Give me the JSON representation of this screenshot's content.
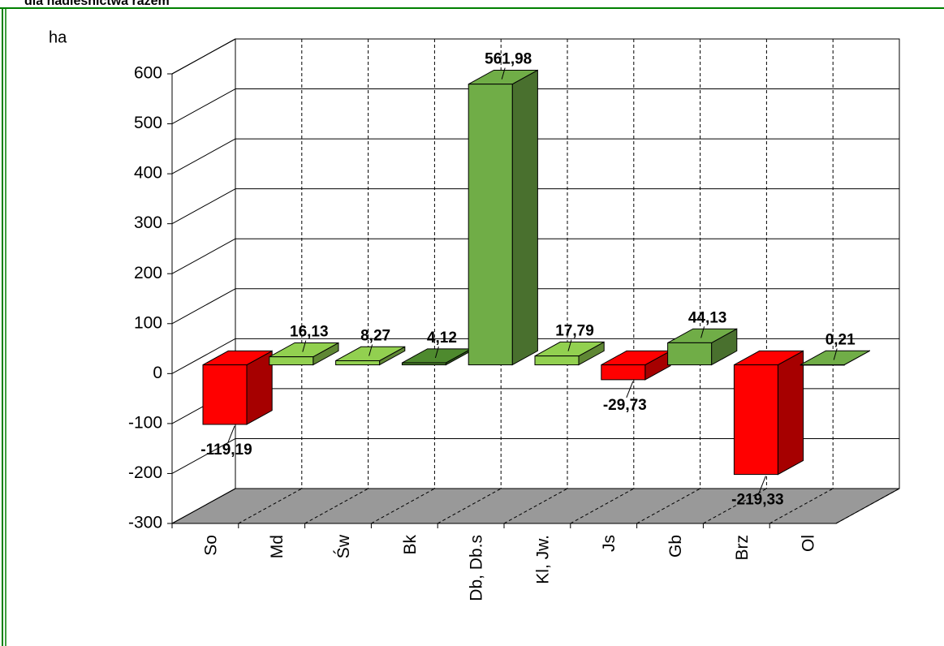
{
  "chart_data": {
    "type": "bar3d",
    "title": "dla nadleśnictwa razem",
    "ylabel": "ha",
    "categories": [
      "So",
      "Md",
      "Św",
      "Bk",
      "Db, Db.s",
      "Kl, Jw.",
      "Js",
      "Gb",
      "Brz",
      "Ol"
    ],
    "values": [
      -119.19,
      16.13,
      8.27,
      4.12,
      561.98,
      17.79,
      -29.73,
      44.13,
      -219.33,
      0.21
    ],
    "value_labels": [
      "-119,19",
      "16,13",
      "8,27",
      "4,12",
      "561,98",
      "17,79",
      "-29,73",
      "44,13",
      "-219,33",
      "0,21"
    ],
    "colors": [
      "#ff0000",
      "#92d050",
      "#92d050",
      "#4e8a2e",
      "#70ad47",
      "#92d050",
      "#ff0000",
      "#70ad47",
      "#ff0000",
      "#70ad47"
    ],
    "ylim": [
      -300,
      600
    ],
    "yticks": [
      -300,
      -200,
      -100,
      0,
      100,
      200,
      300,
      400,
      500,
      600
    ],
    "grid": true
  }
}
